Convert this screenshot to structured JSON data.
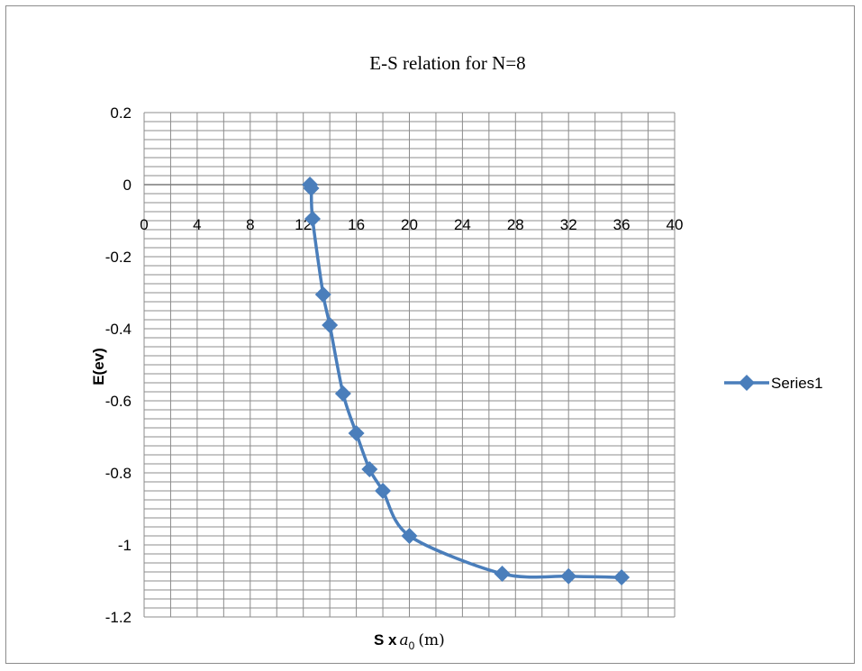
{
  "chart_data": {
    "type": "scatter",
    "title": "E-S  relation for N=8",
    "xlabel": "S x",
    "xlabel_symbol": "a",
    "xlabel_subscript": "0",
    "xlabel_unit": "(m)",
    "ylabel": "E(ev)",
    "xlim": [
      0,
      40
    ],
    "ylim": [
      -1.2,
      0.2
    ],
    "x_ticks": [
      0,
      4,
      8,
      12,
      16,
      20,
      24,
      28,
      32,
      36,
      40
    ],
    "y_ticks": [
      0.2,
      0,
      -0.2,
      -0.4,
      -0.6,
      -0.8,
      -1,
      -1.2
    ],
    "y_tick_labels": [
      "0.2",
      "0",
      "-0.2",
      "-0.4",
      "-0.6",
      "-0.8",
      "-1",
      "-1.2"
    ],
    "grid": true,
    "smooth": true,
    "legend_position": "right",
    "series": [
      {
        "name": "Series1",
        "color": "#4a7ebb",
        "marker": "diamond",
        "x": [
          12.5,
          12.6,
          12.7,
          13.5,
          14,
          15,
          16,
          17,
          18,
          20,
          27,
          32,
          36
        ],
        "y": [
          0,
          -0.01,
          -0.095,
          -0.305,
          -0.39,
          -0.58,
          -0.69,
          -0.79,
          -0.85,
          -0.975,
          -1.08,
          -1.087,
          -1.09
        ]
      }
    ]
  }
}
